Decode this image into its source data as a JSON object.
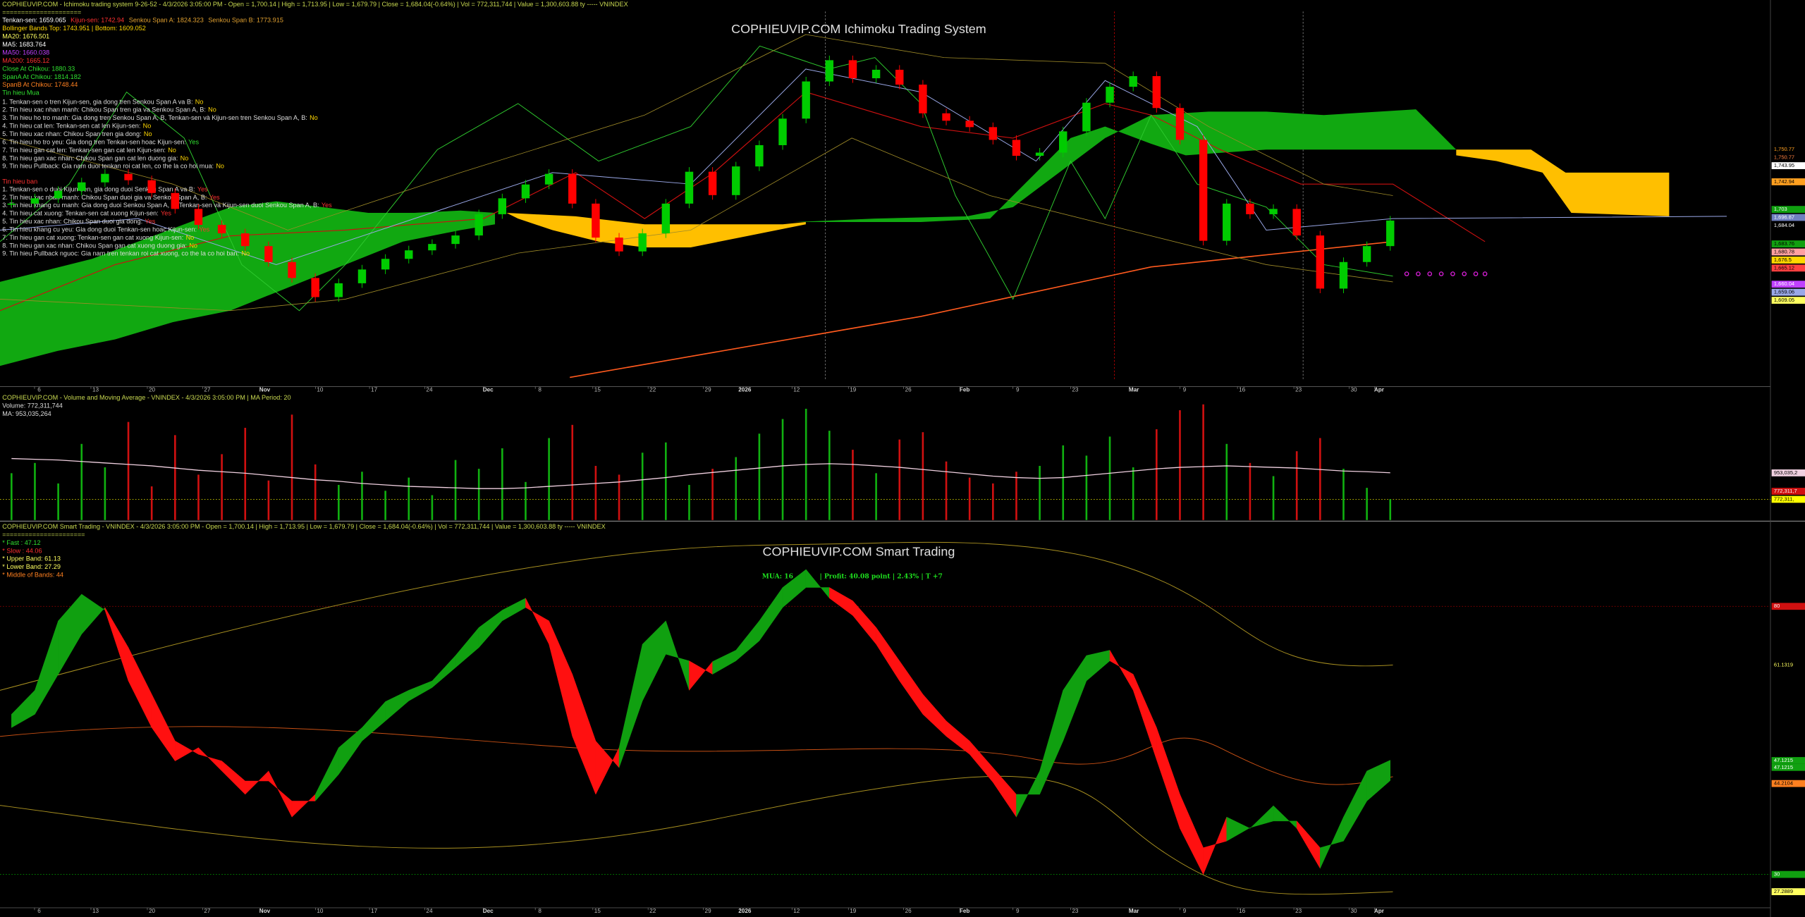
{
  "price_panel": {
    "header": "COPHIEUVIP.COM - Ichimoku trading system 9-26-52 - 4/3/2026 3:05:00 PM - Open = 1,700.14 | High = 1,713.95 | Low = 1,679.79 | Close = 1,684.04(-0.64%) | Vol = 772,311,744 | Value = 1,300,603.88 ty ----- VNINDEX",
    "separator": "=====================",
    "ichimoku_values": [
      "Tenkan-sen: 1659.065",
      "Kijun-sen: 1742.94",
      "Senkou Span A: 1824.323",
      "Senkou Span B: 1773.915"
    ],
    "other_values": [
      "Bollinger Bands Top: 1743.951 | Bottom: 1609.052",
      "MA20: 1676.501",
      "MA5: 1683.764",
      "MA50: 1660.038",
      "MA200: 1665.12",
      "Close At Chikou: 1880.33",
      "SpanA At Chikou: 1814.182",
      "SpanB At Chikou: 1748.44"
    ],
    "buy_title": "Tin hieu Mua",
    "buy_signals": [
      {
        "text": "1. Tenkan-sen o tren Kijun-sen, gia dong tren Senkou Span A va B:",
        "answer": "No"
      },
      {
        "text": "2. Tin hieu xac nhan manh: Chikou Span tren gia va Senkou Span A, B:",
        "answer": "No"
      },
      {
        "text": "3. Tin hieu ho tro manh: Gia dong tren Senkou Span A, B, Tenkan-sen và Kijun-sen tren Senkou Span A, B:",
        "answer": "No"
      },
      {
        "text": "4. Tin hieu cat len: Tenkan-sen cat len Kijun-sen:",
        "answer": "No"
      },
      {
        "text": "5. Tin hieu xac nhan: Chikou Span tren gia dong:",
        "answer": "No"
      },
      {
        "text": "6. Tin hieu ho tro yeu: Gia dong tren Tenkan-sen hoac Kijun-sen:",
        "answer": "Yes"
      },
      {
        "text": "7. Tin hieu gan cat len: Tenkan-sen gan cat len Kijun-sen:",
        "answer": "No"
      },
      {
        "text": "8. Tin hieu gan xac nhan: Chikou Span gan cat len duong gia:",
        "answer": "No"
      },
      {
        "text": "9. Tin hieu Pullback: Gia nam duoi tenkan roi cat len, co the la co hoi mua:",
        "answer": "No"
      }
    ],
    "sell_title": "Tin hieu ban",
    "sell_signals": [
      {
        "text": "1. Tenkan-sen o duoi Kijun-sen, gia dong duoi Senkou Span A va B:",
        "answer": "Yes"
      },
      {
        "text": "2. Tin hieu xac nhan manh: Chikou Span duoi gia va Senkou Span A, B:",
        "answer": "Yes"
      },
      {
        "text": "3. Tin hieu khang cu manh: Gia dong duoi Senkou Span A, B, Tenkan-sen và Kijun-sen duoi Senkou Span A, B:",
        "answer": "Yes"
      },
      {
        "text": "4. Tin hieu cat xuong: Tenkan-sen cat xuong Kijun-sen:",
        "answer": "Yes"
      },
      {
        "text": "5. Tin hieu xac nhan: Chikou Span duoi gia dong:",
        "answer": "Yes"
      },
      {
        "text": "6. Tin hieu khang cu yeu: Gia dong duoi Tenkan-sen hoac Kijun-sen:",
        "answer": "Yes"
      },
      {
        "text": "7. Tin hieu gan cat xuong: Tenkan-sen gan cat xuong Kijun-sen:",
        "answer": "No"
      },
      {
        "text": "8. Tin hieu gan xac nhan: Chikou Span gan cat xuong duong gia:",
        "answer": "No"
      },
      {
        "text": "9. Tin hieu Pullback nguoc: Gia nam tren tenkan roi cat xuong, co the la co hoi ban:",
        "answer": "No"
      }
    ],
    "title": "COPHIEUVIP.COM Ichimoku Trading System",
    "up_color": "#00cc00",
    "down_color": "#ff0000",
    "ylim": [
      1531,
      1883
    ],
    "closes": [
      1700,
      1705,
      1712,
      1720,
      1728,
      1722,
      1710,
      1695,
      1680,
      1672,
      1660,
      1645,
      1630,
      1612,
      1625,
      1638,
      1648,
      1656,
      1662,
      1670,
      1690,
      1705,
      1718,
      1728,
      1700,
      1668,
      1655,
      1672,
      1700,
      1730,
      1708,
      1735,
      1755,
      1780,
      1815,
      1835,
      1818,
      1826,
      1812,
      1785,
      1778,
      1772,
      1760,
      1745,
      1748,
      1768,
      1795,
      1810,
      1820,
      1790,
      1760,
      1665,
      1700,
      1690,
      1695,
      1670,
      1620,
      1645,
      1660,
      1684.04
    ],
    "right_labels": [
      "1,750.77",
      "1,750.77",
      "1,743.95",
      "1,742.94",
      "1,703",
      "1,696.87",
      "1,684.04",
      "1,683.76",
      "1,680.78",
      "1,676.5",
      "1,665.12",
      "1,660.04",
      "1,659.06",
      "1,609.05"
    ]
  },
  "volume_panel": {
    "header": "COPHIEUVIP.COM - Volume and Moving Average - VNINDEX - 4/3/2026 3:05:00 PM | MA Period: 20",
    "volume_text": "Volume: 772,311,744",
    "ma_text": "MA: 953,035,264",
    "ylim": [
      630000000,
      1510000000
    ],
    "volume": [
      950000000,
      1020000000,
      880000000,
      1150000000,
      990000000,
      1300000000,
      860000000,
      1210000000,
      940000000,
      1080000000,
      1260000000,
      900000000,
      1350000000,
      1010000000,
      870000000,
      960000000,
      830000000,
      920000000,
      800000000,
      1040000000,
      980000000,
      1120000000,
      890000000,
      1190000000,
      1280000000,
      1000000000,
      940000000,
      1090000000,
      1160000000,
      870000000,
      980000000,
      1060000000,
      1220000000,
      1320000000,
      1390000000,
      1240000000,
      1110000000,
      950000000,
      1180000000,
      1230000000,
      1030000000,
      920000000,
      880000000,
      960000000,
      1000000000,
      1140000000,
      1070000000,
      1200000000,
      990000000,
      1250000000,
      1380000000,
      1420000000,
      1150000000,
      1020000000,
      930000000,
      1100000000,
      1190000000,
      980000000,
      850000000,
      772311744
    ],
    "ma": [
      1050000000,
      1045000000,
      1040000000,
      1030000000,
      1020000000,
      1010000000,
      1000000000,
      985000000,
      970000000,
      960000000,
      950000000,
      935000000,
      920000000,
      905000000,
      895000000,
      880000000,
      870000000,
      860000000,
      855000000,
      850000000,
      845000000,
      845000000,
      850000000,
      860000000,
      870000000,
      880000000,
      890000000,
      905000000,
      920000000,
      940000000,
      955000000,
      970000000,
      985000000,
      1000000000,
      1010000000,
      1015000000,
      1010000000,
      1000000000,
      990000000,
      975000000,
      960000000,
      945000000,
      930000000,
      920000000,
      915000000,
      920000000,
      935000000,
      950000000,
      965000000,
      980000000,
      990000000,
      995000000,
      1000000000,
      995000000,
      990000000,
      985000000,
      975000000,
      965000000,
      960000000,
      953035264
    ],
    "right_labels": [
      "953,035,2",
      "772,311,7",
      "772,311,"
    ]
  },
  "oscillator_panel": {
    "header": "COPHIEUVIP.COM Smart Trading - VNINDEX - 4/3/2026 3:05:00 PM - Open = 1,700.14 | High = 1,713.95 | Low = 1,679.79 | Close = 1,684.04(-0.64%) | Vol = 772,311,744 | Value = 1,300,603.88 ty ----- VNINDEX",
    "separator": "======================",
    "legend": [
      "* Fast : 47.12",
      "* Slow : 44.06",
      "* Upper Band: 61.13",
      "* Lower Band: 27.29",
      "* Middle of Bands: 44"
    ],
    "title": "COPHIEUVIP.COM Smart Trading",
    "annotation_signal": "MUA: 16",
    "annotation_profit": "| Profit: 40.08 point | 2.43% | T +7",
    "ylim": [
      25,
      80
    ],
    "fast": [
      54,
      57.6,
      68,
      72,
      69.6,
      59,
      52,
      47,
      49,
      45.5,
      42,
      45.5,
      38.6,
      42,
      49,
      52,
      55.9,
      57.6,
      59,
      62.8,
      67,
      69.6,
      71.4,
      64.5,
      50.7,
      42,
      49,
      64.5,
      68,
      57.6,
      61.9,
      63.6,
      68,
      73,
      75.7,
      71.4,
      68.8,
      64.5,
      59,
      54,
      50.7,
      48,
      43.8,
      38.6,
      45.5,
      57.6,
      62.8,
      63.6,
      57.6,
      47.2,
      36.9,
      30,
      38.6,
      36.9,
      40.3,
      36.9,
      30.9,
      38.6,
      45.5,
      47.12
    ],
    "slow": [
      52,
      54,
      60,
      66,
      70,
      64,
      57,
      50,
      48,
      47,
      44,
      44,
      41,
      41,
      45,
      50,
      53,
      56,
      58,
      61,
      64,
      68,
      70,
      68,
      60,
      50,
      46,
      56,
      63,
      62,
      60,
      62,
      65,
      70,
      73,
      73,
      71,
      67,
      62,
      57,
      53,
      50,
      46,
      42,
      42,
      50,
      59,
      62,
      60,
      52,
      42,
      34,
      35,
      37,
      38,
      38,
      34,
      35,
      41,
      44.06
    ],
    "right_labels": [
      "80",
      "61.1319",
      "47.1215",
      "47.1215",
      "44.2104",
      "30",
      "27.2889"
    ]
  },
  "x_axis_labels": [
    "6",
    "13",
    "20",
    "27",
    "Nov",
    "10",
    "17",
    "24",
    "Dec",
    "8",
    "15",
    "22",
    "29",
    "2026",
    "12",
    "19",
    "26",
    "Feb",
    "9",
    "23",
    "Mar",
    "9",
    "16",
    "23",
    "30",
    "Apr"
  ]
}
